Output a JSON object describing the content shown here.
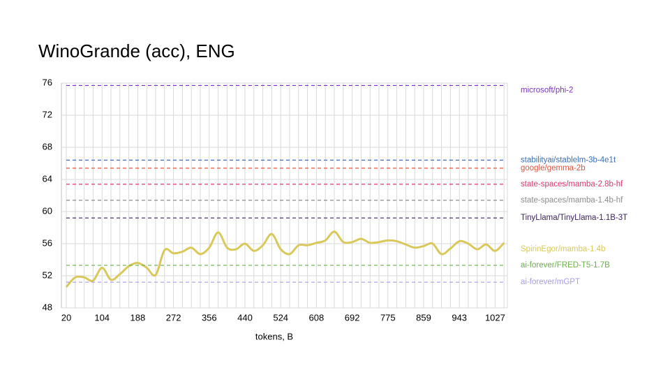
{
  "chart_data": {
    "type": "line",
    "title": "WinoGrande (acc), ENG",
    "x_label": "tokens, B",
    "categories": [
      "20",
      null,
      null,
      null,
      "104",
      null,
      null,
      null,
      "188",
      null,
      null,
      null,
      "272",
      null,
      null,
      null,
      "356",
      null,
      null,
      null,
      "440",
      null,
      null,
      null,
      "524",
      null,
      null,
      null,
      "608",
      null,
      null,
      null,
      "692",
      null,
      null,
      null,
      "775",
      null,
      null,
      null,
      "859",
      null,
      null,
      null,
      "943",
      null,
      null,
      null,
      "1027",
      null
    ],
    "ylim": [
      48,
      76
    ],
    "yticks": [
      48,
      52,
      56,
      60,
      64,
      68,
      72,
      76
    ],
    "grid": true,
    "series": [
      {
        "name": "microsoft/phi-2",
        "color": "#7b2fbe",
        "value": 75.7
      },
      {
        "name": "stabilityai/stablelm-3b-4e1t",
        "color": "#3c6fb5",
        "value": 66.4
      },
      {
        "name": "google/gemma-2b",
        "color": "#e0533a",
        "value": 65.4
      },
      {
        "name": "state-spaces/mamba-2.8b-hf",
        "color": "#e0336b",
        "value": 63.4
      },
      {
        "name": "state-spaces/mamba-1.4b-hf",
        "color": "#8c8c8c",
        "value": 61.4
      },
      {
        "name": "TinyLlama/TinyLlama-1.1B-3T",
        "color": "#3a1f5c",
        "value": 59.2
      },
      {
        "name": "SpirinEgor/mamba-1.4b",
        "color": "#d8c95a",
        "values": [
          50.6,
          51.8,
          51.8,
          51.4,
          53.0,
          51.5,
          52.2,
          53.2,
          53.6,
          53.0,
          52.1,
          55.2,
          54.8,
          55.0,
          55.5,
          54.7,
          55.5,
          57.4,
          55.5,
          55.3,
          56.0,
          55.1,
          55.8,
          57.2,
          55.3,
          54.7,
          55.8,
          55.8,
          56.1,
          56.4,
          57.5,
          56.2,
          56.2,
          56.6,
          56.1,
          56.2,
          56.4,
          56.3,
          55.9,
          55.5,
          55.7,
          56.0,
          54.7,
          55.4,
          56.3,
          56.0,
          55.3,
          55.9,
          55.1,
          56.1
        ]
      },
      {
        "name": "ai-forever/FRED-T5-1.7B",
        "color": "#6bb04a",
        "value": 53.3
      },
      {
        "name": "ai-forever/mGPT",
        "color": "#a99be8",
        "value": 51.2
      }
    ]
  }
}
